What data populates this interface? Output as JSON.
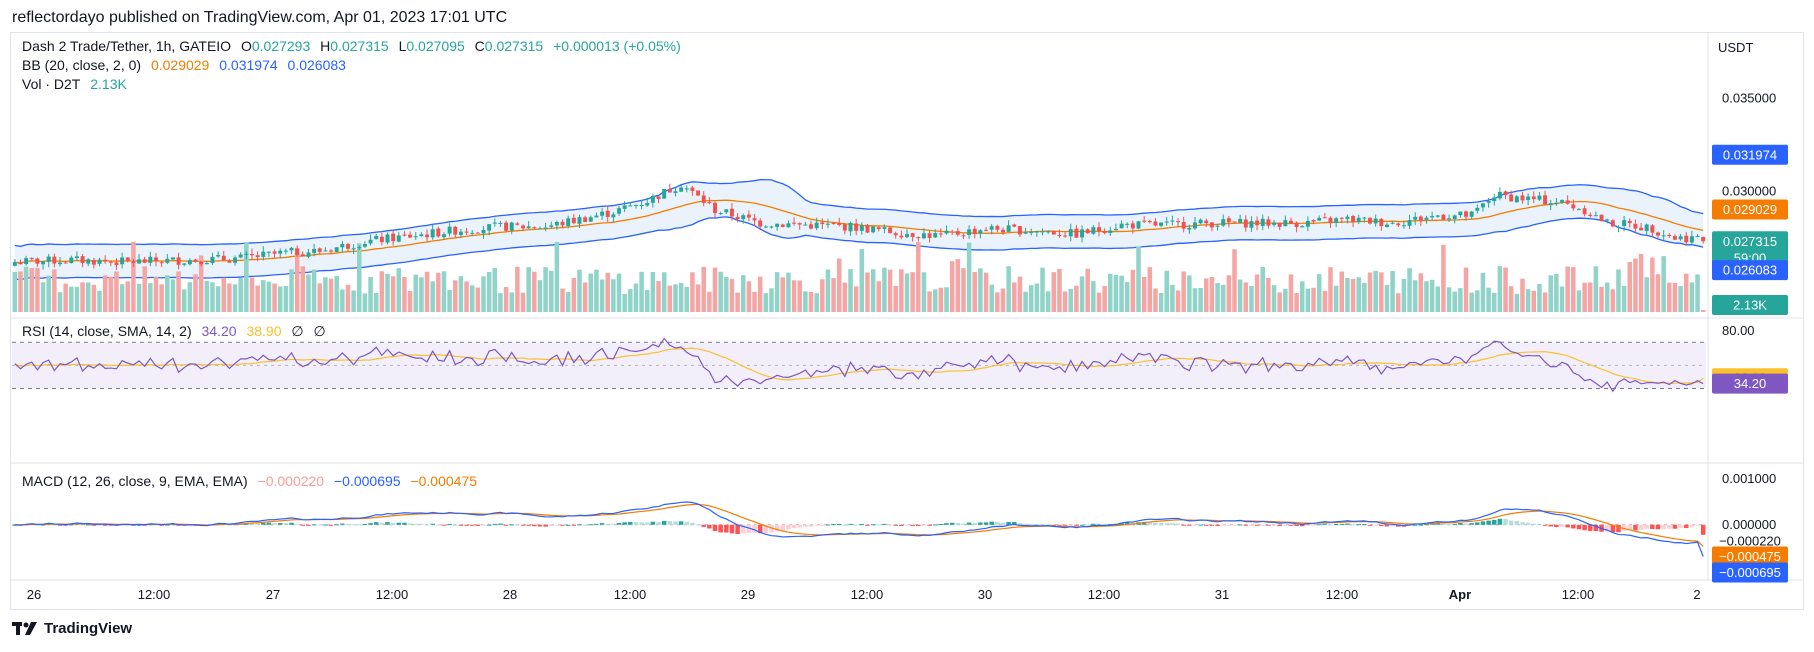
{
  "header": {
    "published": "reflectordayo published on TradingView.com, Apr 01, 2023 17:01 UTC"
  },
  "legend": {
    "symbol": "Dash 2 Trade/Tether, 1h, GATEIO",
    "o_label": "O",
    "o_value": "0.027293",
    "h_label": "H",
    "h_value": "0.027315",
    "l_label": "L",
    "l_value": "0.027095",
    "c_label": "C",
    "c_value": "0.027315",
    "change": "+0.000013 (+0.05%)",
    "bb_label": "BB (20, close, 2, 0)",
    "bb_basis": "0.029029",
    "bb_upper": "0.031974",
    "bb_lower": "0.026083",
    "vol_label": "Vol · D2T",
    "vol_value": "2.13K",
    "rsi_label": "RSI (14, close, SMA, 14, 2)",
    "rsi_value": "34.20",
    "rsi_ma": "38.90",
    "rsi_extra1": "∅",
    "rsi_extra2": "∅",
    "macd_label": "MACD (12, 26, close, 9, EMA, EMA)",
    "macd_hist": "−0.000220",
    "macd_line": "−0.000695",
    "macd_signal": "−0.000475"
  },
  "price_axis": {
    "currency": "USDT",
    "ticks": [
      "0.035000",
      "0.030000"
    ],
    "tag_upper": "0.031974",
    "tag_basis": "0.029029",
    "tag_close": "0.027315",
    "tag_countdown": "59:00",
    "tag_lower": "0.026083",
    "tag_volume": "2.13K"
  },
  "rsi_axis": {
    "ticks": [
      "80.00"
    ],
    "tag_ma": "38.90",
    "tag_rsi": "34.20"
  },
  "macd_axis": {
    "ticks": [
      "0.001000",
      "0.000000"
    ],
    "tag_hist": "−0.000220",
    "tag_signal": "−0.000475",
    "tag_line": "−0.000695"
  },
  "time_axis": [
    "26",
    "12:00",
    "27",
    "12:00",
    "28",
    "12:00",
    "29",
    "12:00",
    "30",
    "12:00",
    "31",
    "12:00",
    "Apr",
    "12:00",
    "2"
  ],
  "footer": {
    "brand": "TradingView"
  },
  "colors": {
    "up": "#26a69a",
    "down": "#ef5350",
    "vol_up": "#8fd3c9",
    "vol_down": "#f6a5a5",
    "bb_band": "#2962ff",
    "bb_basis": "#f57c00",
    "bb_fill": "#eaf3fb",
    "rsi": "#7e57c2",
    "rsi_ma": "#fbc02d",
    "rsi_fill": "#f2effa",
    "macd": "#2962ff",
    "signal": "#f57c00",
    "hist_up_strong": "#26a69a",
    "hist_up_weak": "#b2dfdb",
    "hist_down_strong": "#ff5252",
    "hist_down_weak": "#ffcdd2"
  },
  "chart_data": {
    "type": "candlestick",
    "title": "Dash 2 Trade/Tether, 1h, GATEIO",
    "ylabel": "USDT",
    "price_range": [
      0.0255,
      0.036
    ],
    "x_labels": [
      "26",
      "12:00",
      "27",
      "12:00",
      "28",
      "12:00",
      "29",
      "12:00",
      "30",
      "12:00",
      "31",
      "12:00",
      "Apr",
      "12:00",
      "2"
    ],
    "close_path": [
      [
        0,
        0.0262
      ],
      [
        10,
        0.0263
      ],
      [
        20,
        0.0262
      ],
      [
        30,
        0.0263
      ],
      [
        40,
        0.0264
      ],
      [
        48,
        0.0267
      ],
      [
        54,
        0.0268
      ],
      [
        62,
        0.0273
      ],
      [
        70,
        0.0276
      ],
      [
        78,
        0.0279
      ],
      [
        86,
        0.0281
      ],
      [
        94,
        0.0281
      ],
      [
        100,
        0.0285
      ],
      [
        106,
        0.0289
      ],
      [
        112,
        0.0295
      ],
      [
        118,
        0.0304
      ],
      [
        124,
        0.029
      ],
      [
        132,
        0.0283
      ],
      [
        140,
        0.0282
      ],
      [
        148,
        0.0281
      ],
      [
        156,
        0.0278
      ],
      [
        164,
        0.0276
      ],
      [
        172,
        0.028
      ],
      [
        180,
        0.0279
      ],
      [
        188,
        0.0277
      ],
      [
        196,
        0.0282
      ],
      [
        204,
        0.0282
      ],
      [
        212,
        0.0283
      ],
      [
        220,
        0.0283
      ],
      [
        228,
        0.0283
      ],
      [
        236,
        0.0285
      ],
      [
        244,
        0.0283
      ],
      [
        252,
        0.0287
      ],
      [
        258,
        0.0287
      ],
      [
        262,
        0.0298
      ],
      [
        268,
        0.0296
      ],
      [
        274,
        0.0294
      ],
      [
        278,
        0.029
      ],
      [
        282,
        0.0283
      ],
      [
        286,
        0.0282
      ],
      [
        290,
        0.028
      ],
      [
        294,
        0.0275
      ]
    ],
    "close": 0.027315,
    "bb": {
      "upper": 0.031974,
      "basis": 0.029029,
      "lower": 0.026083
    },
    "rsi": {
      "value": 34.2,
      "ma": 38.9,
      "range": [
        20,
        85
      ],
      "bands": [
        70,
        30
      ]
    },
    "macd": {
      "hist": -0.00022,
      "macd": -0.000695,
      "signal": -0.000475,
      "range": [
        -0.0011,
        0.0012
      ]
    }
  }
}
